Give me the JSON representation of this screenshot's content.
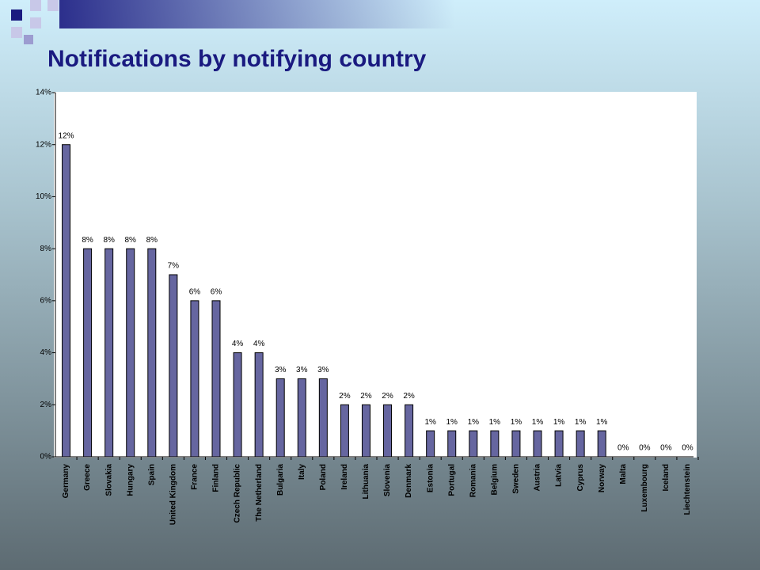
{
  "chart_data": {
    "type": "bar",
    "title": "Notifications by notifying country",
    "categories": [
      "Germany",
      "Greece",
      "Slovakia",
      "Hungary",
      "Spain",
      "United Kingdom",
      "France",
      "Finland",
      "Czech Republic",
      "The Netherland",
      "Bulgaria",
      "Italy",
      "Poland",
      "Ireland",
      "Lithuania",
      "Slovenia",
      "Denmark",
      "Estonia",
      "Portugal",
      "Romania",
      "Belgium",
      "Sweden",
      "Austria",
      "Latvia",
      "Cyprus",
      "Norway",
      "Malta",
      "Luxembourg",
      "Iceland",
      "Liechtenstein"
    ],
    "values": [
      12,
      8,
      8,
      8,
      8,
      7,
      6,
      6,
      4,
      4,
      3,
      3,
      3,
      2,
      2,
      2,
      2,
      1,
      1,
      1,
      1,
      1,
      1,
      1,
      1,
      1,
      0,
      0,
      0,
      0
    ],
    "value_labels": [
      "12%",
      "8%",
      "8%",
      "8%",
      "8%",
      "7%",
      "6%",
      "6%",
      "4%",
      "4%",
      "3%",
      "3%",
      "3%",
      "2%",
      "2%",
      "2%",
      "2%",
      "1%",
      "1%",
      "1%",
      "1%",
      "1%",
      "1%",
      "1%",
      "1%",
      "1%",
      "0%",
      "0%",
      "0%",
      "0%"
    ],
    "color": "#6666a0",
    "ylim": [
      0,
      14
    ],
    "yticks": [
      {
        "value": 0,
        "label": "0%"
      },
      {
        "value": 2,
        "label": "2%"
      },
      {
        "value": 4,
        "label": "4%"
      },
      {
        "value": 6,
        "label": "6%"
      },
      {
        "value": 8,
        "label": "8%"
      },
      {
        "value": 10,
        "label": "10%"
      },
      {
        "value": 12,
        "label": "12%"
      },
      {
        "value": 14,
        "label": "14%"
      }
    ]
  }
}
